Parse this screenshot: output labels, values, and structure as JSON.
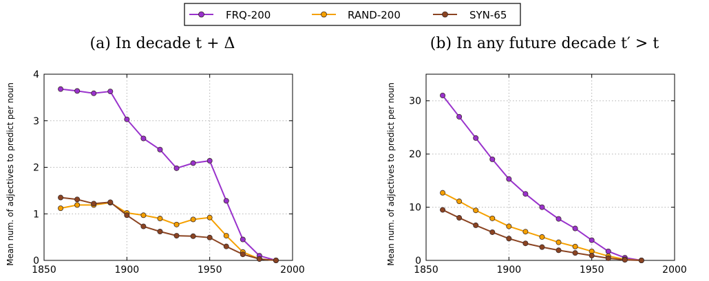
{
  "legend": {
    "entries": [
      {
        "label": "FRQ-200",
        "color": "#9932cc"
      },
      {
        "label": "RAND-200",
        "color": "#f5a000"
      },
      {
        "label": "SYN-65",
        "color": "#8b4422"
      }
    ]
  },
  "chart_data": [
    {
      "type": "line",
      "title": "(a) In decade t + Δ",
      "xlabel": "",
      "ylabel": "Mean num. of adjectives to predict per noun",
      "xlim": [
        1850,
        2000
      ],
      "ylim": [
        0,
        4
      ],
      "xticks": [
        1850,
        1900,
        1950,
        2000
      ],
      "yticks": [
        0,
        1,
        2,
        3,
        4
      ],
      "grid": true,
      "x": [
        1860,
        1870,
        1880,
        1890,
        1900,
        1910,
        1920,
        1930,
        1940,
        1950,
        1960,
        1970,
        1980,
        1990
      ],
      "series": [
        {
          "name": "FRQ-200",
          "color": "#9932cc",
          "values": [
            3.68,
            3.64,
            3.59,
            3.63,
            3.03,
            2.62,
            2.38,
            1.98,
            2.09,
            2.14,
            1.28,
            0.45,
            0.1,
            0.0
          ]
        },
        {
          "name": "RAND-200",
          "color": "#f5a000",
          "values": [
            1.12,
            1.19,
            1.19,
            1.24,
            1.02,
            0.97,
            0.9,
            0.77,
            0.88,
            0.92,
            0.53,
            0.18,
            0.03,
            0.0
          ]
        },
        {
          "name": "SYN-65",
          "color": "#8b4422",
          "values": [
            1.35,
            1.31,
            1.22,
            1.25,
            0.97,
            0.73,
            0.62,
            0.53,
            0.52,
            0.49,
            0.3,
            0.13,
            0.03,
            0.0
          ]
        }
      ]
    },
    {
      "type": "line",
      "title": "(b) In any future decade t′ > t",
      "xlabel": "",
      "ylabel": "Mean num. of adjectives to predict per noun",
      "xlim": [
        1850,
        2000
      ],
      "ylim": [
        0,
        35
      ],
      "xticks": [
        1850,
        1900,
        1950,
        2000
      ],
      "yticks": [
        0,
        10,
        20,
        30
      ],
      "grid": true,
      "x": [
        1860,
        1870,
        1880,
        1890,
        1900,
        1910,
        1920,
        1930,
        1940,
        1950,
        1960,
        1970,
        1980
      ],
      "series": [
        {
          "name": "FRQ-200",
          "color": "#9932cc",
          "values": [
            31.0,
            27.0,
            23.0,
            19.0,
            15.3,
            12.5,
            10.0,
            7.8,
            6.0,
            3.8,
            1.7,
            0.5,
            0.0
          ]
        },
        {
          "name": "RAND-200",
          "color": "#f5a000",
          "values": [
            12.7,
            11.1,
            9.4,
            7.9,
            6.4,
            5.4,
            4.4,
            3.4,
            2.6,
            1.7,
            0.8,
            0.2,
            0.0
          ]
        },
        {
          "name": "SYN-65",
          "color": "#8b4422",
          "values": [
            9.5,
            8.0,
            6.6,
            5.3,
            4.1,
            3.2,
            2.5,
            1.9,
            1.4,
            0.9,
            0.4,
            0.1,
            0.0
          ]
        }
      ]
    }
  ]
}
